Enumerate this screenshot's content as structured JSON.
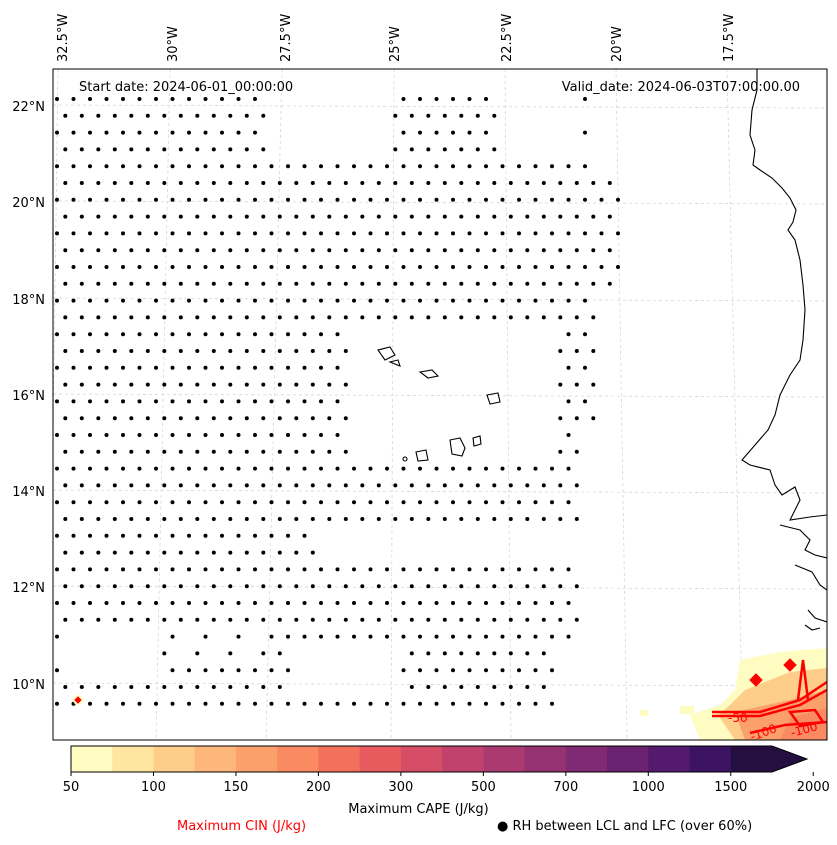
{
  "map": {
    "start_date": "Start date: 2024-06-01_00:00:00",
    "valid_date": "Valid_date: 2024-06-03T07:00:00.00",
    "lon_labels": [
      "32.5°W",
      "30°W",
      "27.5°W",
      "25°W",
      "22.5°W",
      "20°W",
      "17.5°W"
    ],
    "lat_labels": [
      "22°N",
      "20°N",
      "18°N",
      "16°N",
      "14°N",
      "12°N",
      "10°N"
    ],
    "contour_labels": [
      "-50",
      "-100",
      "-100"
    ]
  },
  "colorbar": {
    "label": "Maximum CAPE (J/kg)",
    "ticks": [
      "50",
      "100",
      "150",
      "200",
      "300",
      "500",
      "700",
      "1000",
      "1500",
      "2000"
    ],
    "colors": [
      "#fefcc0",
      "#fee5a0",
      "#fecd8a",
      "#feb77a",
      "#fca06b",
      "#f98a62",
      "#f3705c",
      "#e75b5f",
      "#d54d66",
      "#c1426c",
      "#ab3a70",
      "#953271",
      "#7f2a72",
      "#6a2271",
      "#541a6d",
      "#3c1462",
      "#240f40"
    ],
    "extend": "max"
  },
  "legend": {
    "cin_label": "Maximum CIN (J/kg)",
    "cin_color": "#ff0000",
    "rh_label": "RH between LCL and LFC (over 60%)",
    "rh_marker": "black-dot"
  }
}
